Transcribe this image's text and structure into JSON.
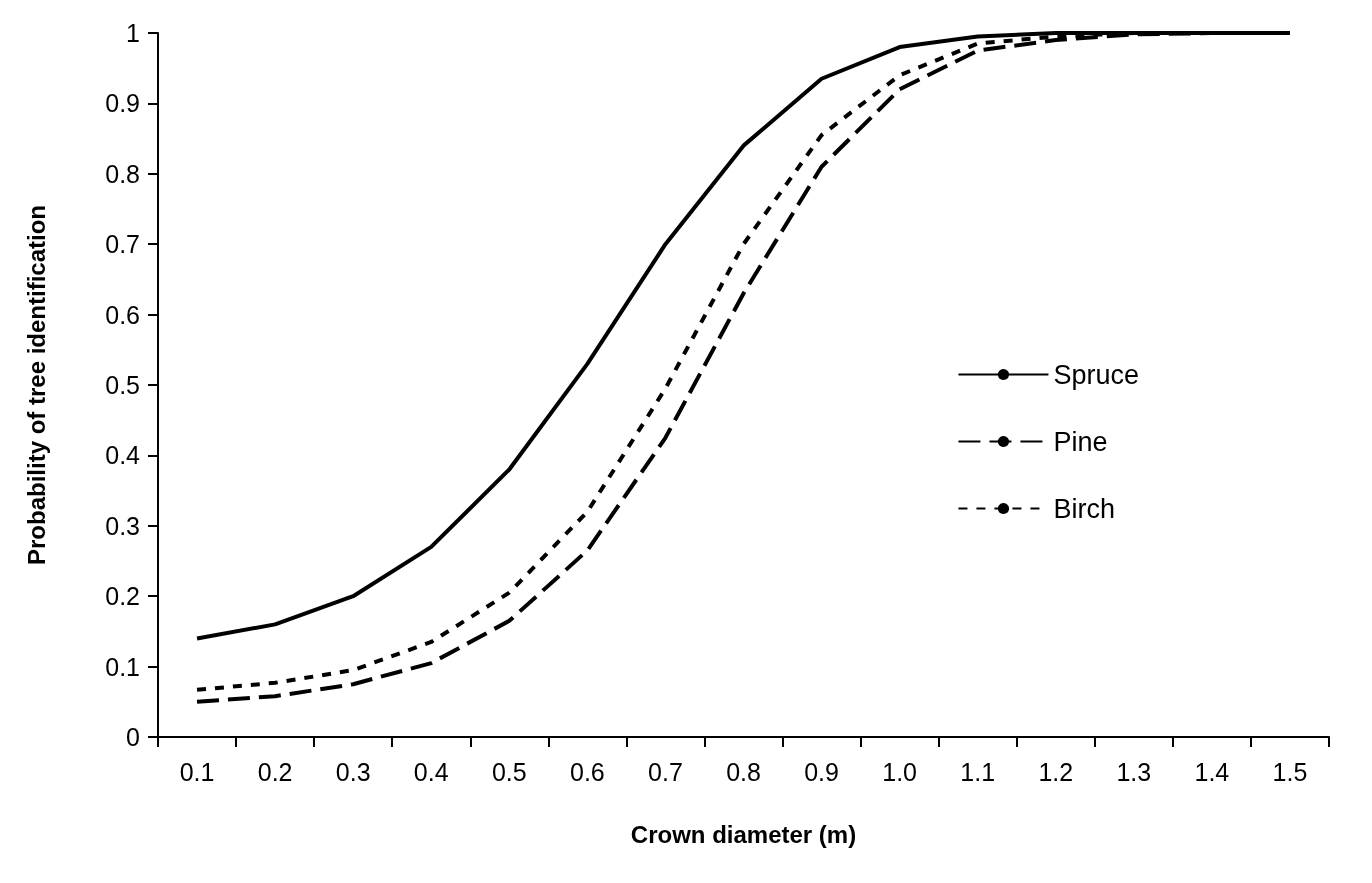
{
  "chart_data": {
    "type": "line",
    "xlabel": "Crown diameter (m)",
    "ylabel": "Probability of tree identification",
    "categories": [
      "0.1",
      "0.2",
      "0.3",
      "0.4",
      "0.5",
      "0.6",
      "0.7",
      "0.8",
      "0.9",
      "1.0",
      "1.1",
      "1.2",
      "1.3",
      "1.4",
      "1.5"
    ],
    "series": [
      {
        "name": "Spruce",
        "color": "#000000",
        "line_style": "solid",
        "values": [
          0.14,
          0.16,
          0.2,
          0.27,
          0.38,
          0.53,
          0.7,
          0.84,
          0.935,
          0.98,
          0.995,
          1.0,
          1.0,
          1.0,
          1.0
        ]
      },
      {
        "name": "Pine",
        "color": "#000000",
        "line_style": "dashed",
        "values": [
          0.05,
          0.058,
          0.075,
          0.105,
          0.165,
          0.265,
          0.425,
          0.63,
          0.81,
          0.92,
          0.975,
          0.99,
          0.998,
          1.0,
          1.0
        ]
      },
      {
        "name": "Birch",
        "color": "#000000",
        "line_style": "dotted",
        "values": [
          0.067,
          0.077,
          0.095,
          0.135,
          0.205,
          0.32,
          0.495,
          0.7,
          0.855,
          0.94,
          0.985,
          0.995,
          1.0,
          1.0,
          1.0
        ]
      }
    ],
    "ylim": [
      0,
      1
    ],
    "yticks": [
      0,
      0.1,
      0.2,
      0.3,
      0.4,
      0.5,
      0.6,
      0.7,
      0.8,
      0.9,
      1
    ],
    "grid": false,
    "legend": "right",
    "marker": "none"
  }
}
